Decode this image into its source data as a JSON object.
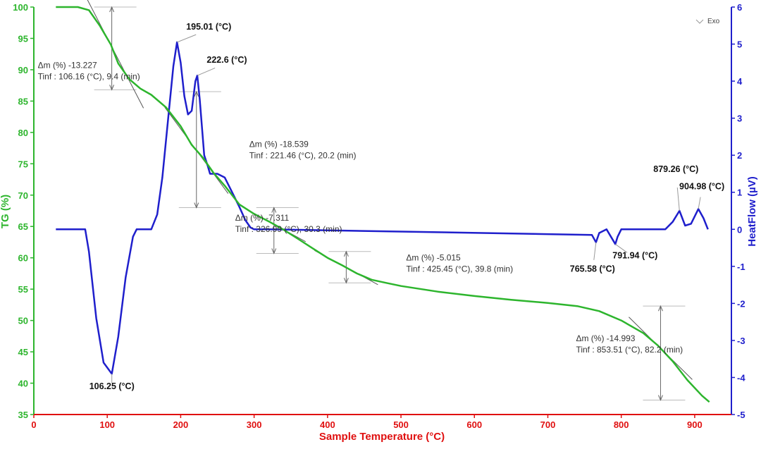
{
  "chart_data": {
    "type": "line",
    "xlabel": "Sample Temperature (°C)",
    "ylabel_left": "TG (%)",
    "ylabel_right": "HeatFlow (µV)",
    "legend": "Exo",
    "xlim": [
      0,
      950
    ],
    "ylim_left": [
      35,
      100
    ],
    "ylim_right": [
      -5,
      6
    ],
    "x_ticks": [
      "0",
      "100",
      "200",
      "300",
      "400",
      "500",
      "600",
      "700",
      "800",
      "900"
    ],
    "y_left_ticks": [
      "35",
      "40",
      "45",
      "50",
      "55",
      "60",
      "65",
      "70",
      "75",
      "80",
      "85",
      "90",
      "95",
      "100"
    ],
    "y_right_ticks": [
      "-5",
      "-4",
      "-3",
      "-2",
      "-1",
      "0",
      "1",
      "2",
      "3",
      "4",
      "5",
      "6"
    ],
    "series": [
      {
        "name": "TG",
        "axis": "left",
        "color": "#2db52d",
        "x": [
          30,
          60,
          75,
          90,
          105,
          115,
          130,
          145,
          160,
          180,
          200,
          215,
          230,
          245,
          260,
          280,
          300,
          320,
          340,
          360,
          380,
          400,
          420,
          440,
          460,
          480,
          500,
          550,
          600,
          650,
          700,
          740,
          770,
          800,
          830,
          850,
          870,
          890,
          910,
          920
        ],
        "values": [
          100,
          100,
          99.5,
          97,
          94,
          91,
          88.5,
          87,
          86,
          84,
          81,
          78,
          76,
          73.5,
          71.5,
          68.5,
          67,
          65.8,
          64.5,
          63,
          61.5,
          60,
          58.8,
          57.5,
          56.5,
          56,
          55.5,
          54.6,
          53.9,
          53.3,
          52.8,
          52.3,
          51.5,
          50,
          48,
          46,
          43.5,
          40.5,
          38,
          37
        ]
      },
      {
        "name": "HeatFlow",
        "axis": "right",
        "color": "#1f1fcc",
        "x": [
          30,
          70,
          75,
          85,
          95,
          106.25,
          115,
          125,
          135,
          140,
          150,
          160,
          168,
          175,
          183,
          190,
          195.01,
          200,
          205,
          210,
          215,
          220,
          222.6,
          226,
          232,
          237,
          240,
          250,
          260,
          270,
          280,
          288,
          295,
          300,
          310,
          320,
          760,
          765.58,
          770,
          780,
          791.94,
          795,
          800,
          860,
          870,
          879.26,
          887,
          895,
          904.98,
          912,
          918
        ],
        "values": [
          0,
          0,
          -0.6,
          -2.4,
          -3.6,
          -3.9,
          -2.9,
          -1.3,
          -0.2,
          0,
          0,
          0,
          0.4,
          1.4,
          3,
          4.4,
          5.05,
          4.5,
          3.6,
          3.1,
          3.2,
          4,
          4.15,
          3.5,
          2,
          1.7,
          1.5,
          1.5,
          1.4,
          1,
          0.6,
          0.25,
          0.05,
          0,
          0,
          0,
          -0.15,
          -0.35,
          -0.1,
          0,
          -0.4,
          -0.2,
          0,
          0,
          0.2,
          0.5,
          0.1,
          0.15,
          0.55,
          0.3,
          0
        ]
      }
    ],
    "peak_labels": [
      {
        "text": "195.01 (°C)",
        "x": 195.01,
        "hf": 5.05
      },
      {
        "text": "222.6 (°C)",
        "x": 222.6,
        "hf": 4.15
      },
      {
        "text": "106.25 (°C)",
        "x": 106.25,
        "hf": -3.9
      },
      {
        "text": "791.94 (°C)",
        "x": 791.94,
        "hf": -0.4
      },
      {
        "text": "765.58 (°C)",
        "x": 765.58,
        "hf": -0.35
      },
      {
        "text": "879.26 (°C)",
        "x": 879.26,
        "hf": 0.5
      },
      {
        "text": "904.98 (°C)",
        "x": 904.98,
        "hf": 0.55
      }
    ],
    "mass_loss_annotations": [
      {
        "dm": "Δm (%) -13.227",
        "tinf": "Tinf : 106.16 (°C), 9.4 (min)",
        "x": 106.16,
        "tg_top": 100,
        "tg_bottom": 86.8
      },
      {
        "dm": "Δm (%) -18.539",
        "tinf": "Tinf : 221.46 (°C), 20.2 (min)",
        "x": 221.46,
        "tg_top": 86.5,
        "tg_bottom": 68
      },
      {
        "dm": "Δm (%) -7.311",
        "tinf": "Tinf : 326.99 (°C), 30.3 (min)",
        "x": 326.99,
        "tg_top": 68,
        "tg_bottom": 60.7
      },
      {
        "dm": "Δm (%) -5.015",
        "tinf": "Tinf : 425.45 (°C), 39.8 (min)",
        "x": 425.45,
        "tg_top": 61,
        "tg_bottom": 56
      },
      {
        "dm": "Δm (%) -14.993",
        "tinf": "Tinf : 853.51 (°C), 82.2 (min)",
        "x": 853.51,
        "tg_top": 52.3,
        "tg_bottom": 37.3
      }
    ]
  }
}
